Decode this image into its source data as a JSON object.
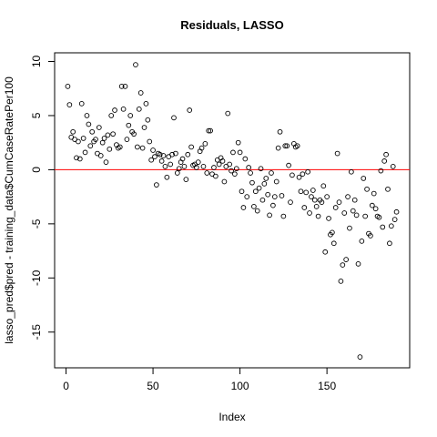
{
  "chart_data": {
    "type": "scatter",
    "title": "Residuals, LASSO",
    "xlabel": "Index",
    "ylabel": "lasso_pred$pred - training_data$CumCaseRatePer100",
    "xlim": [
      -6.56,
      197.56
    ],
    "ylim": [
      -18.3,
      10.8
    ],
    "xticks": [
      0,
      50,
      100,
      150
    ],
    "yticks": [
      -15,
      -10,
      -5,
      0,
      5,
      10
    ],
    "color": "#000000",
    "hline": {
      "value": 0,
      "color": "#ff0000"
    },
    "x": [
      1,
      2,
      3,
      4,
      5,
      6,
      7,
      8,
      9,
      10,
      11,
      12,
      13,
      14,
      15,
      16,
      17,
      18,
      19,
      20,
      21,
      22,
      23,
      24,
      25,
      26,
      27,
      28,
      29,
      30,
      31,
      32,
      33,
      34,
      35,
      36,
      37,
      38,
      39,
      40,
      41,
      42,
      43,
      44,
      45,
      46,
      47,
      48,
      49,
      50,
      51,
      52,
      53,
      54,
      55,
      56,
      57,
      58,
      59,
      60,
      61,
      62,
      63,
      64,
      65,
      66,
      67,
      68,
      69,
      70,
      71,
      72,
      73,
      74,
      75,
      76,
      77,
      78,
      79,
      80,
      81,
      82,
      83,
      84,
      85,
      86,
      87,
      88,
      89,
      90,
      91,
      92,
      93,
      94,
      95,
      96,
      97,
      98,
      99,
      100,
      101,
      102,
      103,
      104,
      105,
      106,
      107,
      108,
      109,
      110,
      111,
      112,
      113,
      114,
      115,
      116,
      117,
      118,
      119,
      120,
      121,
      122,
      123,
      124,
      125,
      126,
      127,
      128,
      129,
      130,
      131,
      132,
      133,
      134,
      135,
      136,
      137,
      138,
      139,
      140,
      141,
      142,
      143,
      144,
      145,
      146,
      147,
      148,
      149,
      150,
      151,
      152,
      153,
      154,
      155,
      156,
      157,
      158,
      159,
      160,
      161,
      162,
      163,
      164,
      165,
      166,
      167,
      168,
      169,
      170,
      171,
      172,
      173,
      174,
      175,
      176,
      177,
      178,
      179,
      180,
      181,
      182,
      183,
      184,
      185,
      186,
      187,
      188,
      189,
      190
    ],
    "values": [
      7.7,
      6.0,
      3.0,
      3.5,
      2.8,
      1.1,
      2.6,
      1.0,
      6.1,
      2.9,
      1.6,
      5.0,
      4.2,
      2.2,
      3.5,
      2.6,
      2.8,
      1.5,
      3.9,
      1.3,
      2.5,
      2.9,
      0.7,
      3.2,
      1.9,
      5.0,
      3.3,
      5.5,
      2.3,
      2.0,
      2.1,
      7.7,
      5.6,
      7.7,
      2.8,
      4.1,
      5.0,
      3.5,
      3.3,
      9.7,
      2.1,
      5.6,
      7.1,
      2.0,
      3.9,
      6.1,
      4.6,
      2.6,
      0.9,
      1.8,
      1.2,
      -1.4,
      1.5,
      1.4,
      0.8,
      1.3,
      0.3,
      -0.7,
      1.2,
      0.5,
      1.4,
      4.8,
      1.5,
      -0.3,
      0.1,
      0.7,
      1.0,
      0.3,
      -0.9,
      1.4,
      5.5,
      2.1,
      0.4,
      0.5,
      0.2,
      0.7,
      1.7,
      2.0,
      0.3,
      2.4,
      -0.3,
      3.6,
      3.6,
      -0.4,
      0.2,
      -0.6,
      0.9,
      0.5,
      1.1,
      0.8,
      -1.1,
      0.3,
      5.2,
      0.5,
      -0.1,
      1.6,
      -0.4,
      0.1,
      2.5,
      1.6,
      -2.0,
      -3.5,
      1.0,
      -2.5,
      0.2,
      -0.3,
      -1.2,
      -3.4,
      -2.0,
      -3.8,
      -1.7,
      0.1,
      -2.8,
      -1.3,
      -0.8,
      -2.3,
      -4.2,
      -0.3,
      -3.3,
      -2.5,
      -1.1,
      2.0,
      3.5,
      -2.4,
      -4.3,
      2.2,
      2.2,
      0.4,
      -3.0,
      -0.5,
      2.4,
      2.1,
      2.2,
      -0.7,
      -2.0,
      -0.4,
      -3.5,
      -2.1,
      -0.2,
      -4.0,
      -2.5,
      -1.9,
      -2.8,
      -3.4,
      -4.3,
      -2.8,
      -3.0,
      -1.5,
      -7.6,
      -2.5,
      -4.5,
      -6.0,
      -5.8,
      -6.8,
      -3.5,
      1.5,
      -3.0,
      -10.3,
      -8.8,
      -4.0,
      -8.3,
      -2.5,
      -5.4,
      -0.2,
      -3.8,
      -2.8,
      -4.2,
      -8.7,
      -17.3,
      -6.6,
      -0.8,
      -4.3,
      -1.8,
      -5.9,
      -6.1,
      -3.3,
      -2.2,
      -3.6,
      -4.3,
      -4.4,
      -0.1,
      -5.3,
      0.8,
      1.4,
      -1.8,
      -6.8,
      -5.2,
      0.3,
      -4.6,
      -3.9
    ]
  }
}
